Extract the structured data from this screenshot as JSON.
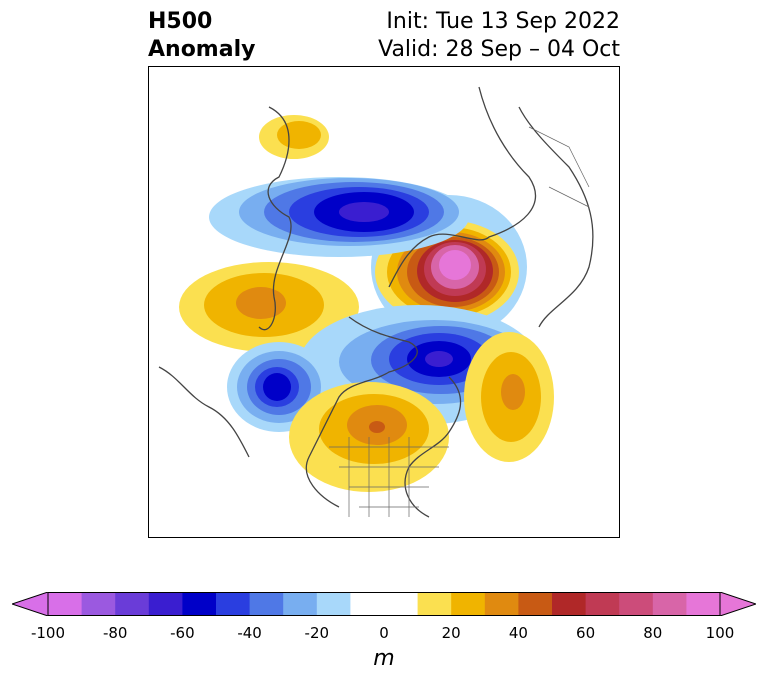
{
  "header": {
    "title_line1": "H500",
    "title_line2": "Anomaly",
    "init_text": "Init: Tue 13 Sep 2022",
    "valid_text": "Valid: 28 Sep – 04 Oct"
  },
  "colorbar": {
    "unit": "m",
    "ticks": [
      "-100",
      "-80",
      "-60",
      "-40",
      "-20",
      "0",
      "20",
      "40",
      "60",
      "80",
      "100"
    ],
    "colors": [
      "#d86fe8",
      "#9b59e0",
      "#6a3cd8",
      "#3a1ed0",
      "#0000c8",
      "#2a3ee0",
      "#4f78e6",
      "#78aef0",
      "#a8d8fa",
      "#ffffff",
      "#ffffff",
      "#fbe050",
      "#f0b400",
      "#e08a10",
      "#c85a14",
      "#b02828",
      "#c03a54",
      "#cc4c7a",
      "#d865a8",
      "#e676d8"
    ],
    "extend_colors": {
      "low": "#d86fe8",
      "high": "#e676d8"
    }
  },
  "map": {
    "field": "500 hPa geopotential height anomaly",
    "centers": [
      {
        "sign": "positive",
        "max_m": 90,
        "region": "Arctic / northern Scandinavia-Russia"
      },
      {
        "sign": "negative",
        "min_m": -65,
        "region": "Siberia / East Asia"
      },
      {
        "sign": "negative",
        "min_m": -75,
        "region": "Greenland / Baffin"
      },
      {
        "sign": "negative",
        "min_m": -65,
        "region": "Gulf of Alaska"
      },
      {
        "sign": "positive",
        "max_m": 45,
        "region": "central North America"
      },
      {
        "sign": "positive",
        "max_m": 40,
        "region": "North Atlantic"
      },
      {
        "sign": "positive",
        "max_m": 40,
        "region": "North Pacific"
      },
      {
        "sign": "positive",
        "max_m": 25,
        "region": "Central Asia"
      }
    ]
  }
}
